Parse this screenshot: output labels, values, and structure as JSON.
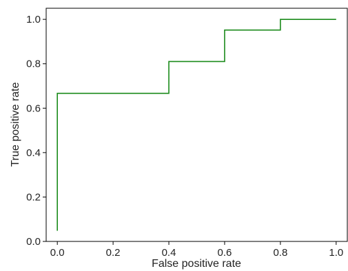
{
  "chart_data": {
    "type": "line",
    "title": "",
    "xlabel": "False positive rate",
    "ylabel": "True positive rate",
    "xlim": [
      -0.04,
      1.04
    ],
    "ylim": [
      0.0,
      1.05
    ],
    "grid": false,
    "legend": "none",
    "xticks": [
      0.0,
      0.2,
      0.4,
      0.6,
      0.8,
      1.0
    ],
    "xtick_labels": [
      "0.0",
      "0.2",
      "0.4",
      "0.6",
      "0.8",
      "1.0"
    ],
    "yticks": [
      0.0,
      0.2,
      0.4,
      0.6,
      0.8,
      1.0
    ],
    "ytick_labels": [
      "0.0",
      "0.2",
      "0.4",
      "0.6",
      "0.8",
      "1.0"
    ],
    "series": [
      {
        "color": "#1a8a1a",
        "step": true,
        "x": [
          0.0,
          0.0,
          0.4,
          0.4,
          0.6,
          0.6,
          0.8,
          0.8,
          1.0
        ],
        "y": [
          0.048,
          0.667,
          0.667,
          0.81,
          0.81,
          0.952,
          0.952,
          1.0,
          1.0
        ]
      }
    ]
  }
}
